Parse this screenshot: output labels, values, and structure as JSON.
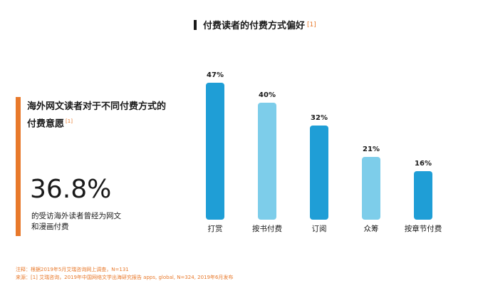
{
  "left_panel": {
    "title": "海外网文读者对于不同付费方式的付费意愿",
    "title_ref": "[1]",
    "stat_value": "36.8%",
    "stat_desc_line1": "的受访海外读者曾经为网文",
    "stat_desc_line2": "和漫画付费"
  },
  "chart_title": "付费读者的付费方式偏好",
  "chart_title_ref": "[1]",
  "footnotes": {
    "note": "注释：根据2019年5月艾瑞咨询网上调查，N=131",
    "source": "来源：[1] 艾瑞咨询，2019年中国网络文学出海研究报告 apps, global, N=324, 2019年6月发布"
  },
  "colors": {
    "accent": "#e8792b",
    "dark_bar": "#1f9ed6",
    "light_bar": "#7dcdea"
  },
  "chart_data": {
    "type": "bar",
    "title": "付费读者的付费方式偏好",
    "categories": [
      "打赏",
      "按书付费",
      "订阅",
      "众筹",
      "按章节付费"
    ],
    "values": [
      47,
      40,
      32,
      21,
      16
    ],
    "value_labels": [
      "47%",
      "40%",
      "32%",
      "21%",
      "16%"
    ],
    "bar_colors": [
      "#1f9ed6",
      "#7dcdea",
      "#1f9ed6",
      "#7dcdea",
      "#1f9ed6"
    ],
    "ylim": [
      0,
      47
    ],
    "grid": false,
    "legend": false
  }
}
